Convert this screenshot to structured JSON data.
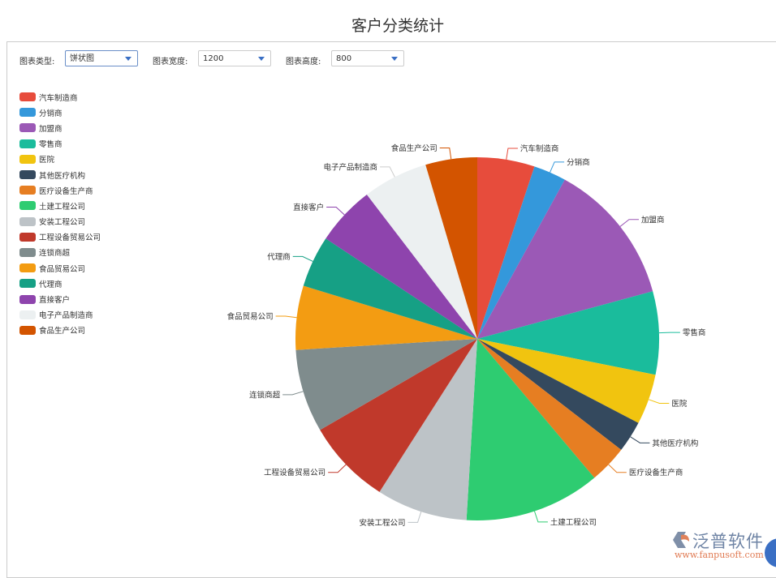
{
  "title": "客户分类统计",
  "controls": [
    {
      "label": "图表类型:",
      "value": "饼状图"
    },
    {
      "label": "图表宽度:",
      "value": "1200"
    },
    {
      "label": "图表高度:",
      "value": "800"
    }
  ],
  "logo": {
    "name": "泛普软件",
    "url": "www.fanpusoft.com"
  },
  "chart_data": {
    "type": "pie",
    "title": "客户分类统计",
    "legend_position": "left",
    "categories": [
      "汽车制造商",
      "分销商",
      "加盟商",
      "零售商",
      "医院",
      "其他医疗机构",
      "医疗设备生产商",
      "土建工程公司",
      "安装工程公司",
      "工程设备贸易公司",
      "连锁商超",
      "食品贸易公司",
      "代理商",
      "直接客户",
      "电子产品制造商",
      "食品生产公司"
    ],
    "values": [
      5.1,
      2.9,
      12.8,
      7.4,
      4.5,
      2.8,
      3.4,
      12.1,
      8.1,
      7.6,
      7.4,
      5.7,
      4.6,
      5.3,
      5.8,
      4.6
    ],
    "colors": [
      "#e74c3c",
      "#3498db",
      "#9b59b6",
      "#1abc9c",
      "#f1c40f",
      "#34495e",
      "#e67e22",
      "#2ecc71",
      "#bdc3c7",
      "#c0392b",
      "#7f8c8d",
      "#f39c12",
      "#16a085",
      "#8e44ad",
      "#ecf0f1",
      "#d35400"
    ]
  }
}
